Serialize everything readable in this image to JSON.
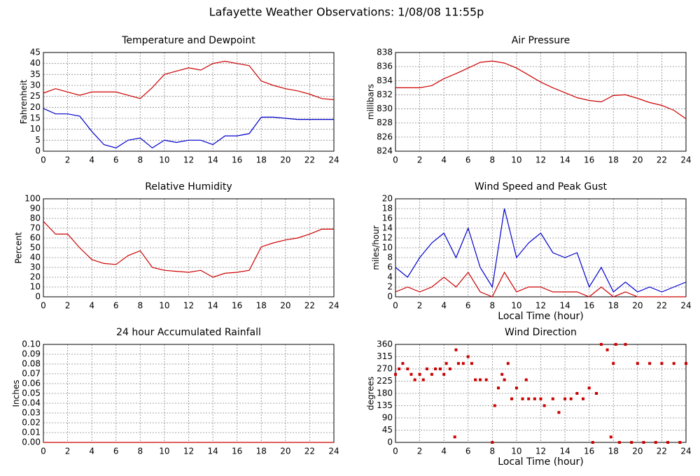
{
  "title": "Lafayette Weather Observations: 1/08/08 11:55p",
  "chart_data": [
    {
      "type": "line",
      "title": "Temperature and Dewpoint",
      "y_label": "Fahrenheit",
      "x": [
        0,
        1,
        2,
        3,
        4,
        5,
        6,
        7,
        8,
        9,
        10,
        11,
        12,
        13,
        14,
        15,
        16,
        17,
        18,
        19,
        20,
        21,
        22,
        23,
        24
      ],
      "series": [
        {
          "color": "#cc0000",
          "values": [
            26.5,
            28.5,
            27,
            25.5,
            27,
            27,
            27,
            25.5,
            24,
            29,
            35,
            36.5,
            38,
            37,
            40,
            41,
            40,
            39,
            32,
            30,
            28.5,
            27.5,
            26,
            24,
            23.5
          ]
        },
        {
          "color": "#0000cc",
          "values": [
            19.5,
            17,
            17,
            16,
            9,
            3,
            1.5,
            5,
            6,
            1.5,
            5,
            4,
            5,
            5,
            3,
            7,
            7,
            8,
            15.5,
            15.5,
            15,
            14.5,
            14.5,
            14.5,
            14.5
          ]
        }
      ],
      "xlim": [
        0,
        24
      ],
      "xticks": [
        0,
        2,
        4,
        6,
        8,
        10,
        12,
        14,
        16,
        18,
        20,
        22,
        24
      ],
      "ylim": [
        0,
        45
      ],
      "yticks": [
        0,
        5,
        10,
        15,
        20,
        25,
        30,
        35,
        40,
        45
      ],
      "grid": true
    },
    {
      "type": "line",
      "title": "Air Pressure",
      "y_label": "millibars",
      "x": [
        0,
        1,
        2,
        3,
        4,
        5,
        6,
        7,
        8,
        9,
        10,
        11,
        12,
        13,
        14,
        15,
        16,
        17,
        18,
        19,
        20,
        21,
        22,
        23,
        24
      ],
      "series": [
        {
          "color": "#cc0000",
          "values": [
            833,
            833,
            833,
            833.3,
            834.3,
            835,
            835.8,
            836.6,
            836.8,
            836.5,
            835.8,
            834.8,
            833.8,
            833,
            832.3,
            831.6,
            831.2,
            831,
            831.9,
            832,
            831.5,
            830.9,
            830.5,
            829.8,
            828.6
          ]
        }
      ],
      "xlim": [
        0,
        24
      ],
      "xticks": [
        0,
        2,
        4,
        6,
        8,
        10,
        12,
        14,
        16,
        18,
        20,
        22,
        24
      ],
      "ylim": [
        824,
        838
      ],
      "yticks": [
        824,
        826,
        828,
        830,
        832,
        834,
        836,
        838
      ],
      "grid": true
    },
    {
      "type": "line",
      "title": "Relative Humidity",
      "y_label": "Percent",
      "x": [
        0,
        1,
        2,
        3,
        4,
        5,
        6,
        7,
        8,
        9,
        10,
        11,
        12,
        13,
        14,
        15,
        16,
        17,
        18,
        19,
        20,
        21,
        22,
        23,
        24
      ],
      "series": [
        {
          "color": "#cc0000",
          "values": [
            77,
            64,
            64,
            50,
            38,
            34,
            33,
            42,
            47,
            30,
            27,
            26,
            25,
            27,
            20,
            24,
            25,
            27,
            51,
            55,
            58,
            60,
            64,
            69,
            69
          ]
        }
      ],
      "xlim": [
        0,
        24
      ],
      "xticks": [
        0,
        2,
        4,
        6,
        8,
        10,
        12,
        14,
        16,
        18,
        20,
        22,
        24
      ],
      "ylim": [
        0,
        100
      ],
      "yticks": [
        0,
        10,
        20,
        30,
        40,
        50,
        60,
        70,
        80,
        90,
        100
      ],
      "grid": true
    },
    {
      "type": "line",
      "title": "Wind Speed and Peak Gust",
      "y_label": "miles/hour",
      "x_label": "Local Time (hour)",
      "x": [
        0,
        1,
        2,
        3,
        4,
        5,
        6,
        7,
        8,
        9,
        10,
        11,
        12,
        13,
        14,
        15,
        16,
        17,
        18,
        19,
        20,
        21,
        22,
        23,
        24
      ],
      "series": [
        {
          "color": "#0000cc",
          "values": [
            6,
            4,
            8,
            11,
            13,
            8,
            14,
            6,
            2,
            18,
            8,
            11,
            13,
            9,
            8,
            9,
            2,
            6,
            1,
            3,
            1,
            2,
            1,
            2,
            3
          ]
        },
        {
          "color": "#cc0000",
          "values": [
            1,
            2,
            1,
            2,
            4,
            2,
            5,
            1,
            0,
            5,
            1,
            2,
            2,
            1,
            1,
            1,
            0,
            2,
            0,
            1,
            0,
            0,
            0,
            0,
            0
          ]
        }
      ],
      "xlim": [
        0,
        24
      ],
      "xticks": [
        0,
        2,
        4,
        6,
        8,
        10,
        12,
        14,
        16,
        18,
        20,
        22,
        24
      ],
      "ylim": [
        0,
        20
      ],
      "yticks": [
        0,
        2,
        4,
        6,
        8,
        10,
        12,
        14,
        16,
        18,
        20
      ],
      "grid": true
    },
    {
      "type": "line",
      "title": "24 hour Accumulated Rainfall",
      "y_label": "Inches",
      "x": [
        0,
        24
      ],
      "series": [
        {
          "color": "#cc0000",
          "values": [
            0,
            0
          ]
        }
      ],
      "xlim": [
        0,
        24
      ],
      "xticks": [
        0,
        2,
        4,
        6,
        8,
        10,
        12,
        14,
        16,
        18,
        20,
        22,
        24
      ],
      "ylim": [
        0,
        0.1
      ],
      "yticks": [
        {
          "value": 0,
          "label": "0.00"
        },
        0.01,
        0.02,
        0.03,
        0.04,
        0.05,
        0.06,
        0.07,
        0.08,
        0.09,
        {
          "value": 0.1,
          "label": "0.10"
        }
      ],
      "grid": true
    },
    {
      "type": "scatter",
      "title": "Wind Direction",
      "y_label": "degrees",
      "x_label": "Local Time (hour)",
      "x": [
        0,
        0.3,
        0.6,
        1,
        1.3,
        1.6,
        2,
        2.3,
        2.6,
        3,
        3.3,
        3.7,
        4,
        4.2,
        4.5,
        4.9,
        5,
        5.2,
        5.6,
        6,
        6.3,
        6.6,
        7,
        7.5,
        8,
        8.2,
        8.5,
        8.8,
        9,
        9.3,
        9.6,
        10,
        10.5,
        10.8,
        11,
        11.5,
        12,
        12.3,
        13,
        13.5,
        14,
        14.5,
        15,
        15.5,
        16,
        16.3,
        16.6,
        17,
        17.5,
        17.8,
        18,
        18.2,
        18.5,
        19,
        19.5,
        20,
        20.5,
        21,
        21.5,
        22,
        22.5,
        23,
        23.5,
        24
      ],
      "series": [
        {
          "color": "#cc0000",
          "values": [
            250,
            270,
            290,
            270,
            250,
            230,
            250,
            230,
            270,
            250,
            270,
            270,
            250,
            290,
            270,
            20,
            340,
            290,
            290,
            315,
            290,
            230,
            230,
            230,
            0,
            135,
            200,
            250,
            230,
            290,
            160,
            200,
            160,
            230,
            160,
            160,
            160,
            135,
            160,
            110,
            160,
            160,
            180,
            160,
            200,
            0,
            180,
            360,
            340,
            20,
            290,
            360,
            0,
            360,
            0,
            290,
            0,
            290,
            0,
            290,
            0,
            290,
            0,
            290
          ]
        }
      ],
      "xlim": [
        0,
        24
      ],
      "xticks": [
        0,
        2,
        4,
        6,
        8,
        10,
        12,
        14,
        16,
        18,
        20,
        22,
        24
      ],
      "ylim": [
        0,
        360
      ],
      "yticks": [
        0,
        45,
        90,
        135,
        180,
        225,
        270,
        315,
        360
      ],
      "grid": true
    }
  ]
}
